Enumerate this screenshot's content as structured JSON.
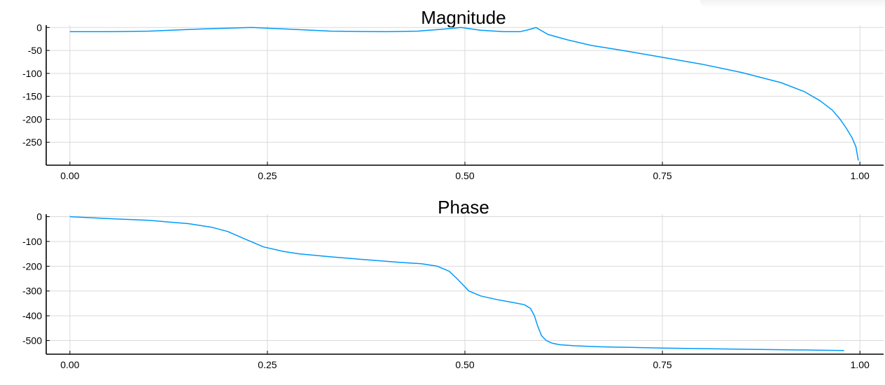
{
  "colors": {
    "series": "#009af9",
    "grid": "#d9d9d9",
    "axis": "#000000"
  },
  "chart_data": [
    {
      "type": "line",
      "title": "Magnitude",
      "xlabel": "",
      "ylabel": "",
      "xlim": [
        -0.03,
        1.03
      ],
      "ylim": [
        -300,
        5
      ],
      "xticks": [
        0,
        0.25,
        0.5,
        0.75,
        1.0
      ],
      "xtick_labels": [
        "0.00",
        "0.25",
        "0.50",
        "0.75",
        "1.00"
      ],
      "yticks": [
        0,
        -50,
        -100,
        -150,
        -200,
        -250
      ],
      "ytick_labels": [
        "0",
        "-50",
        "-100",
        "-150",
        "-200",
        "-250"
      ],
      "grid": true,
      "legend": "none",
      "series": [
        {
          "name": "Magnitude",
          "x": [
            0.0,
            0.05,
            0.1,
            0.17,
            0.23,
            0.27,
            0.33,
            0.4,
            0.44,
            0.47,
            0.495,
            0.52,
            0.55,
            0.57,
            0.58,
            0.59,
            0.605,
            0.63,
            0.66,
            0.7,
            0.75,
            0.8,
            0.85,
            0.9,
            0.93,
            0.95,
            0.965,
            0.975,
            0.983,
            0.99,
            0.995,
            0.998
          ],
          "values": [
            -9,
            -9,
            -8,
            -3,
            0,
            -3,
            -8,
            -9,
            -8,
            -4,
            0,
            -6,
            -9,
            -9,
            -5,
            0,
            -15,
            -27,
            -39,
            -50,
            -65,
            -80,
            -98,
            -120,
            -140,
            -160,
            -180,
            -200,
            -220,
            -240,
            -260,
            -290
          ]
        }
      ]
    },
    {
      "type": "line",
      "title": "Phase",
      "xlabel": "",
      "ylabel": "",
      "xlim": [
        -0.03,
        1.03
      ],
      "ylim": [
        -555,
        10
      ],
      "xticks": [
        0,
        0.25,
        0.5,
        0.75,
        1.0
      ],
      "xtick_labels": [
        "0.00",
        "0.25",
        "0.50",
        "0.75",
        "1.00"
      ],
      "yticks": [
        0,
        -100,
        -200,
        -300,
        -400,
        -500
      ],
      "ytick_labels": [
        "0",
        "-100",
        "-200",
        "-300",
        "-400",
        "-500"
      ],
      "grid": true,
      "legend": "none",
      "series": [
        {
          "name": "Phase",
          "x": [
            0.0,
            0.05,
            0.1,
            0.15,
            0.18,
            0.2,
            0.22,
            0.245,
            0.27,
            0.29,
            0.33,
            0.38,
            0.42,
            0.445,
            0.465,
            0.48,
            0.49,
            0.505,
            0.52,
            0.54,
            0.56,
            0.575,
            0.583,
            0.588,
            0.592,
            0.597,
            0.603,
            0.61,
            0.62,
            0.64,
            0.67,
            0.75,
            0.85,
            0.98
          ],
          "values": [
            0,
            -8,
            -15,
            -28,
            -43,
            -60,
            -88,
            -122,
            -140,
            -150,
            -162,
            -175,
            -185,
            -190,
            -200,
            -220,
            -250,
            -300,
            -320,
            -334,
            -346,
            -355,
            -370,
            -400,
            -440,
            -480,
            -500,
            -510,
            -517,
            -521,
            -525,
            -530,
            -535,
            -540
          ]
        }
      ]
    }
  ]
}
